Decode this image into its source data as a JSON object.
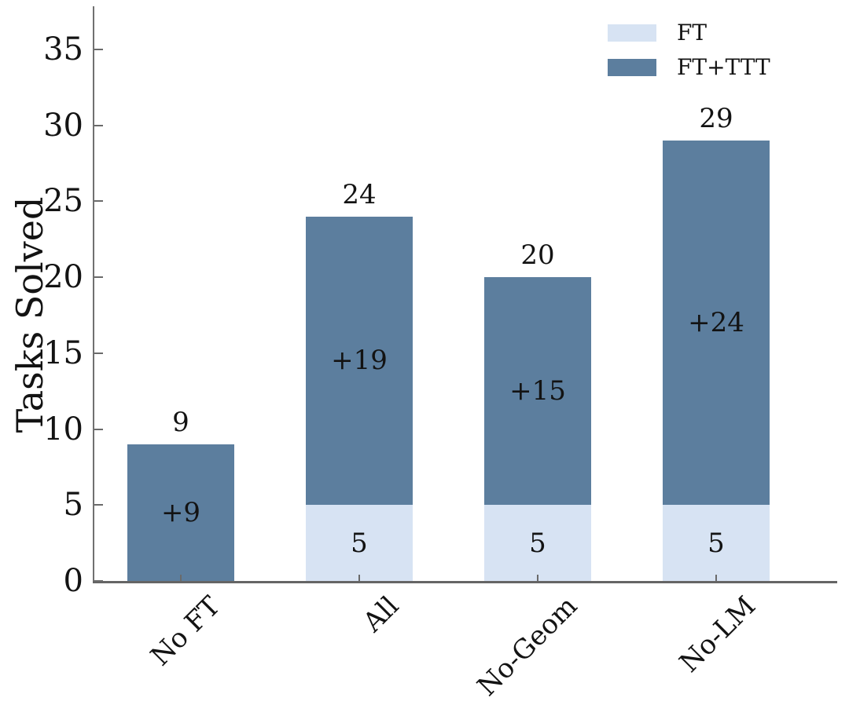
{
  "chart_data": {
    "type": "bar",
    "stacked": true,
    "title": "",
    "ylabel": "Tasks Solved",
    "xlabel": "",
    "categories": [
      "No FT",
      "All",
      "No-Geom",
      "No-LM"
    ],
    "series": [
      {
        "name": "FT",
        "color": "#d7e3f3",
        "values": [
          0,
          5,
          5,
          5
        ],
        "segment_labels": [
          "",
          "5",
          "5",
          "5"
        ]
      },
      {
        "name": "FT+TTT",
        "color": "#5c7e9e",
        "values": [
          9,
          19,
          15,
          24
        ],
        "segment_labels": [
          "+9",
          "+19",
          "+15",
          "+24"
        ]
      }
    ],
    "totals": [
      9,
      24,
      20,
      29
    ],
    "total_labels": [
      "9",
      "24",
      "20",
      "29"
    ],
    "yticks": [
      0,
      5,
      10,
      15,
      20,
      25,
      30,
      35
    ],
    "ylim": [
      0,
      37.8
    ],
    "grid": false,
    "legend": {
      "position": "upper right",
      "frame": false,
      "entries": [
        "FT",
        "FT+TTT"
      ]
    },
    "colors": {
      "ft": "#d7e3f3",
      "ft_ttt": "#5c7e9e",
      "axis": "#6a6a6a",
      "text": "#131313"
    }
  }
}
